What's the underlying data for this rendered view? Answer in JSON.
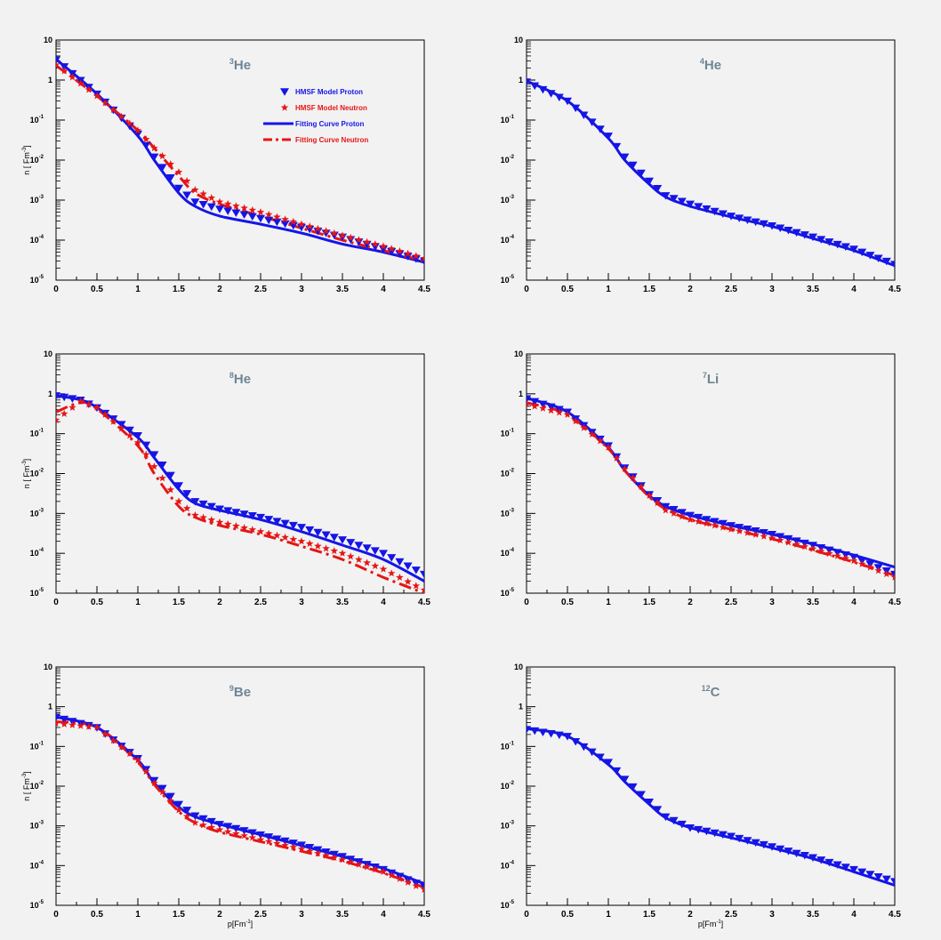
{
  "colors": {
    "background": "#f2f2f2",
    "proton": "#1515e6",
    "neutron": "#e61515",
    "title": "#6f8595",
    "axis": "#000000"
  },
  "chart_data": [
    {
      "type": "line",
      "title": "³He",
      "title_base": "He",
      "title_sup": "3",
      "xlabel": "",
      "ylabel": "n [ Fm⁻³]",
      "ylabel_base": "n [ Fm",
      "ylabel_sup": "-3",
      "ylabel_end": "]",
      "xlim": [
        0,
        4.5
      ],
      "ylim": [
        1e-05,
        10
      ],
      "yscale": "log",
      "grid": false,
      "legend": {
        "position": "top-right",
        "entries": [
          {
            "label": "HMSF Model Proton",
            "kind": "triangle",
            "color": "#1515e6"
          },
          {
            "label": "HMSF Model Neutron",
            "kind": "star",
            "color": "#e61515"
          },
          {
            "label": "Fitting Curve Proton",
            "kind": "solid",
            "color": "#1515e6"
          },
          {
            "label": "Fitting Curve Neutron",
            "kind": "dashdot",
            "color": "#e61515"
          }
        ]
      },
      "series": [
        {
          "name": "HMSF Model Proton",
          "role": "proton-points",
          "x": [
            0,
            0.5,
            1,
            1.2,
            1.5,
            1.7,
            2,
            2.5,
            3,
            3.5,
            4,
            4.5
          ],
          "y": [
            3.2,
            0.45,
            0.045,
            0.012,
            0.002,
            0.0009,
            0.0006,
            0.00035,
            0.00021,
            0.00012,
            6e-05,
            3e-05
          ]
        },
        {
          "name": "HMSF Model Neutron",
          "role": "neutron-points",
          "x": [
            0,
            0.5,
            1,
            1.2,
            1.5,
            1.7,
            2,
            2.5,
            3,
            3.5,
            4,
            4.5
          ],
          "y": [
            2.4,
            0.4,
            0.055,
            0.02,
            0.005,
            0.0018,
            0.0009,
            0.0005,
            0.00025,
            0.00013,
            7e-05,
            3.5e-05
          ]
        },
        {
          "name": "Fitting Curve Proton",
          "role": "proton-curve",
          "x": [
            0,
            0.5,
            1,
            1.2,
            1.5,
            1.7,
            2,
            2.5,
            3,
            3.5,
            4,
            4.5
          ],
          "y": [
            3.3,
            0.45,
            0.04,
            0.01,
            0.0015,
            0.0007,
            0.0004,
            0.00025,
            0.00015,
            8e-05,
            5e-05,
            2.8e-05
          ]
        },
        {
          "name": "Fitting Curve Neutron",
          "role": "neutron-curve",
          "x": [
            0,
            0.5,
            1,
            1.2,
            1.5,
            1.7,
            2,
            2.5,
            3,
            3.5,
            4,
            4.5
          ],
          "y": [
            2.3,
            0.4,
            0.055,
            0.02,
            0.004,
            0.0015,
            0.0008,
            0.0004,
            0.0002,
            0.0001,
            5.5e-05,
            3e-05
          ]
        }
      ]
    },
    {
      "type": "line",
      "title": "⁴He",
      "title_base": "He",
      "title_sup": "4",
      "xlabel": "",
      "ylabel": "",
      "xlim": [
        0,
        4.5
      ],
      "ylim": [
        1e-05,
        10
      ],
      "yscale": "log",
      "grid": false,
      "series": [
        {
          "name": "HMSF Model Proton",
          "role": "proton-points",
          "x": [
            0,
            0.5,
            1,
            1.2,
            1.5,
            1.7,
            2,
            2.5,
            3,
            3.5,
            4,
            4.5
          ],
          "y": [
            0.9,
            0.3,
            0.04,
            0.012,
            0.003,
            0.0013,
            0.0008,
            0.0004,
            0.00023,
            0.00012,
            6e-05,
            2.5e-05
          ]
        },
        {
          "name": "Fitting Curve Proton",
          "role": "proton-curve",
          "x": [
            0,
            0.5,
            1,
            1.2,
            1.5,
            1.7,
            2,
            2.5,
            3,
            3.5,
            4,
            4.5
          ],
          "y": [
            0.95,
            0.3,
            0.035,
            0.01,
            0.0025,
            0.0012,
            0.0007,
            0.00038,
            0.00022,
            0.00011,
            5.5e-05,
            2.3e-05
          ]
        }
      ]
    },
    {
      "type": "line",
      "title": "⁸He",
      "title_base": "He",
      "title_sup": "8",
      "xlabel": "",
      "ylabel": "n [ Fm⁻³]",
      "ylabel_base": "n [ Fm",
      "ylabel_sup": "-3",
      "ylabel_end": "]",
      "xlim": [
        0,
        4.5
      ],
      "ylim": [
        1e-05,
        10
      ],
      "yscale": "log",
      "grid": false,
      "series": [
        {
          "name": "HMSF Model Proton",
          "role": "proton-points",
          "x": [
            0,
            0.3,
            0.5,
            1,
            1.2,
            1.5,
            1.7,
            2,
            2.5,
            3,
            3.5,
            4,
            4.5
          ],
          "y": [
            0.9,
            0.7,
            0.45,
            0.09,
            0.03,
            0.005,
            0.002,
            0.0013,
            0.0008,
            0.00045,
            0.00022,
            0.0001,
            3e-05
          ]
        },
        {
          "name": "HMSF Model Neutron",
          "role": "neutron-points",
          "x": [
            0,
            0.3,
            0.5,
            1,
            1.2,
            1.5,
            1.7,
            2,
            2.5,
            3,
            3.5,
            4,
            4.5
          ],
          "y": [
            0.22,
            0.65,
            0.45,
            0.06,
            0.015,
            0.002,
            0.0009,
            0.0006,
            0.00035,
            0.0002,
            0.0001,
            4e-05,
            1.2e-05
          ]
        },
        {
          "name": "Fitting Curve Proton",
          "role": "proton-curve",
          "x": [
            0,
            0.3,
            0.5,
            1,
            1.2,
            1.5,
            1.7,
            2,
            2.5,
            3,
            3.5,
            4,
            4.5
          ],
          "y": [
            0.9,
            0.7,
            0.45,
            0.08,
            0.025,
            0.004,
            0.0018,
            0.0012,
            0.0007,
            0.00035,
            0.00016,
            7e-05,
            2e-05
          ]
        },
        {
          "name": "Fitting Curve Neutron",
          "role": "neutron-curve",
          "x": [
            0,
            0.3,
            0.5,
            1,
            1.2,
            1.5,
            1.7,
            2,
            2.5,
            3,
            3.5,
            4,
            4.5
          ],
          "y": [
            0.35,
            0.6,
            0.42,
            0.05,
            0.01,
            0.0015,
            0.0008,
            0.0005,
            0.0003,
            0.00015,
            7e-05,
            2.5e-05,
            1e-05
          ]
        }
      ]
    },
    {
      "type": "line",
      "title": "⁷Li",
      "title_base": "Li",
      "title_sup": "7",
      "xlabel": "",
      "ylabel": "",
      "xlim": [
        0,
        4.5
      ],
      "ylim": [
        1e-05,
        10
      ],
      "yscale": "log",
      "grid": false,
      "series": [
        {
          "name": "HMSF Model Proton",
          "role": "proton-points",
          "x": [
            0,
            0.5,
            1,
            1.2,
            1.5,
            1.7,
            2,
            2.5,
            3,
            3.5,
            4,
            4.5
          ],
          "y": [
            0.75,
            0.35,
            0.05,
            0.014,
            0.003,
            0.0015,
            0.0009,
            0.0005,
            0.0003,
            0.00016,
            8e-05,
            3e-05
          ]
        },
        {
          "name": "HMSF Model Neutron",
          "role": "neutron-points",
          "x": [
            0,
            0.5,
            1,
            1.2,
            1.5,
            1.7,
            2,
            2.5,
            3,
            3.5,
            4,
            4.5
          ],
          "y": [
            0.55,
            0.3,
            0.045,
            0.013,
            0.0028,
            0.0012,
            0.0007,
            0.0004,
            0.00024,
            0.00013,
            6.5e-05,
            2.5e-05
          ]
        },
        {
          "name": "Fitting Curve Proton",
          "role": "proton-curve",
          "x": [
            0,
            0.5,
            1,
            1.2,
            1.5,
            1.7,
            2,
            2.5,
            3,
            3.5,
            4,
            4.5
          ],
          "y": [
            0.78,
            0.35,
            0.045,
            0.012,
            0.0028,
            0.0015,
            0.0009,
            0.0005,
            0.0003,
            0.00017,
            9e-05,
            4.5e-05
          ]
        },
        {
          "name": "Fitting Curve Neutron",
          "role": "neutron-curve",
          "x": [
            0,
            0.5,
            1,
            1.2,
            1.5,
            1.7,
            2,
            2.5,
            3,
            3.5,
            4,
            4.5
          ],
          "y": [
            0.6,
            0.3,
            0.042,
            0.012,
            0.0026,
            0.0013,
            0.0007,
            0.0004,
            0.00023,
            0.00012,
            6e-05,
            2.8e-05
          ]
        }
      ]
    },
    {
      "type": "line",
      "title": "⁹Be",
      "title_base": "Be",
      "title_sup": "9",
      "xlabel": "p[Fm⁻¹]",
      "xlabel_base": "p[Fm",
      "xlabel_sup": "-1",
      "xlabel_end": "]",
      "ylabel": "n [ Fm⁻³]",
      "ylabel_base": "n [ Fm",
      "ylabel_sup": "-3",
      "ylabel_end": "]",
      "xlim": [
        0,
        4.5
      ],
      "ylim": [
        1e-05,
        10
      ],
      "yscale": "log",
      "grid": false,
      "series": [
        {
          "name": "HMSF Model Proton",
          "role": "proton-points",
          "x": [
            0,
            0.5,
            1,
            1.2,
            1.5,
            1.7,
            2,
            2.5,
            3,
            3.5,
            4,
            4.5
          ],
          "y": [
            0.55,
            0.3,
            0.05,
            0.014,
            0.0035,
            0.0018,
            0.0011,
            0.0006,
            0.00033,
            0.00017,
            8e-05,
            3e-05
          ]
        },
        {
          "name": "HMSF Model Neutron",
          "role": "neutron-points",
          "x": [
            0,
            0.5,
            1,
            1.2,
            1.5,
            1.7,
            2,
            2.5,
            3,
            3.5,
            4,
            4.5
          ],
          "y": [
            0.38,
            0.3,
            0.045,
            0.012,
            0.0025,
            0.0012,
            0.0008,
            0.00045,
            0.00026,
            0.00014,
            7e-05,
            2.5e-05
          ]
        },
        {
          "name": "Fitting Curve Proton",
          "role": "proton-curve",
          "x": [
            0,
            0.5,
            1,
            1.2,
            1.5,
            1.7,
            2,
            2.5,
            3,
            3.5,
            4,
            4.5
          ],
          "y": [
            0.55,
            0.3,
            0.045,
            0.012,
            0.003,
            0.0017,
            0.0011,
            0.0006,
            0.00032,
            0.00017,
            8.5e-05,
            3.5e-05
          ]
        },
        {
          "name": "Fitting Curve Neutron",
          "role": "neutron-curve",
          "x": [
            0,
            0.5,
            1,
            1.2,
            1.5,
            1.7,
            2,
            2.5,
            3,
            3.5,
            4,
            4.5
          ],
          "y": [
            0.42,
            0.3,
            0.04,
            0.011,
            0.0023,
            0.0012,
            0.0007,
            0.0004,
            0.00023,
            0.00013,
            6.5e-05,
            2.8e-05
          ]
        }
      ]
    },
    {
      "type": "line",
      "title": "¹²C",
      "title_base": "C",
      "title_sup": "12",
      "xlabel": "p[Fm⁻¹]",
      "xlabel_base": "p[Fm",
      "xlabel_sup": "-1",
      "xlabel_end": "]",
      "ylabel": "",
      "xlim": [
        0,
        4.5
      ],
      "ylim": [
        1e-05,
        10
      ],
      "yscale": "log",
      "grid": false,
      "series": [
        {
          "name": "HMSF Model Proton",
          "role": "proton-points",
          "x": [
            0,
            0.5,
            1,
            1.2,
            1.5,
            1.7,
            2,
            2.5,
            3,
            3.5,
            4,
            4.5
          ],
          "y": [
            0.27,
            0.18,
            0.04,
            0.015,
            0.004,
            0.0017,
            0.0009,
            0.00055,
            0.0003,
            0.00016,
            8e-05,
            4e-05
          ]
        },
        {
          "name": "Fitting Curve Proton",
          "role": "proton-curve",
          "x": [
            0,
            0.5,
            1,
            1.2,
            1.5,
            1.7,
            2,
            2.5,
            3,
            3.5,
            4,
            4.5
          ],
          "y": [
            0.28,
            0.18,
            0.035,
            0.013,
            0.0035,
            0.0016,
            0.0009,
            0.0005,
            0.00028,
            0.00015,
            7e-05,
            3.2e-05
          ]
        }
      ]
    }
  ],
  "axis": {
    "x_ticks": [
      "0",
      "0.5",
      "1",
      "1.5",
      "2",
      "2.5",
      "3",
      "3.5",
      "4",
      "4.5"
    ],
    "y_ticks": [
      {
        "base": "10",
        "sup": "-5"
      },
      {
        "base": "10",
        "sup": "-4"
      },
      {
        "base": "10",
        "sup": "-3"
      },
      {
        "base": "10",
        "sup": "-2"
      },
      {
        "base": "10",
        "sup": "-1"
      },
      {
        "base": "1",
        "sup": ""
      },
      {
        "base": "10",
        "sup": ""
      }
    ]
  }
}
